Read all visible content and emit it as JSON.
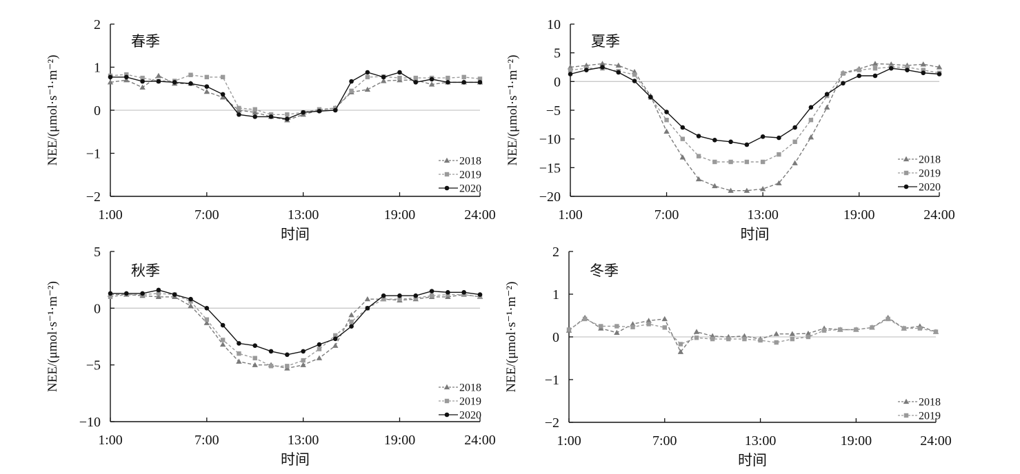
{
  "colors": {
    "axis": "#111111",
    "zero_line": "#c8c8c8",
    "s2018": "#7a7a7a",
    "s2019": "#9a9a9a",
    "s2020": "#111111"
  },
  "chart_data": [
    {
      "type": "line",
      "title": "春季",
      "ylabel": "NEE/(μmol·s⁻¹·m⁻²)",
      "xlabel": "时间",
      "ylim": [
        -2,
        2
      ],
      "yticks": [
        "2",
        "1",
        "0",
        "−1",
        "−2"
      ],
      "xticks": [
        "1:00",
        "7:00",
        "13:00",
        "19:00",
        "24:00"
      ],
      "x": [
        1,
        2,
        3,
        4,
        5,
        6,
        7,
        8,
        9,
        10,
        11,
        12,
        13,
        14,
        15,
        16,
        17,
        18,
        19,
        20,
        21,
        22,
        23,
        24
      ],
      "legend_position": "bottom-right",
      "series": [
        {
          "name": "2018",
          "marker": "triangle",
          "values": [
            0.65,
            0.7,
            0.53,
            0.8,
            0.62,
            0.62,
            0.43,
            0.3,
            0.0,
            -0.05,
            -0.15,
            -0.23,
            -0.1,
            0.0,
            0.05,
            0.42,
            0.48,
            0.68,
            0.7,
            0.7,
            0.6,
            0.65,
            0.65,
            0.65
          ]
        },
        {
          "name": "2019",
          "marker": "square",
          "values": [
            0.8,
            0.83,
            0.75,
            0.68,
            0.68,
            0.82,
            0.77,
            0.77,
            0.05,
            0.02,
            -0.1,
            -0.1,
            -0.05,
            0.02,
            0.05,
            0.45,
            0.77,
            0.78,
            0.75,
            0.75,
            0.75,
            0.75,
            0.77,
            0.73
          ]
        },
        {
          "name": "2020",
          "marker": "circle",
          "values": [
            0.77,
            0.77,
            0.67,
            0.67,
            0.65,
            0.62,
            0.55,
            0.37,
            -0.1,
            -0.15,
            -0.15,
            -0.2,
            -0.05,
            -0.02,
            0.0,
            0.67,
            0.88,
            0.77,
            0.88,
            0.65,
            0.72,
            0.65,
            0.65,
            0.65
          ]
        }
      ]
    },
    {
      "type": "line",
      "title": "夏季",
      "ylabel": "NEE/(μmol·s⁻¹·m⁻²)",
      "xlabel": "时间",
      "ylim": [
        -20,
        10
      ],
      "yticks": [
        "10",
        "5",
        "0",
        "−5",
        "−10",
        "−15",
        "−20"
      ],
      "xticks": [
        "1:00",
        "7:00",
        "13:00",
        "19:00",
        "24:00"
      ],
      "x": [
        1,
        2,
        3,
        4,
        5,
        6,
        7,
        8,
        9,
        10,
        11,
        12,
        13,
        14,
        15,
        16,
        17,
        18,
        19,
        20,
        21,
        22,
        23,
        24
      ],
      "legend_position": "bottom-right",
      "series": [
        {
          "name": "2018",
          "marker": "triangle",
          "values": [
            2.5,
            2.8,
            3.1,
            2.8,
            1.7,
            -2.5,
            -8.7,
            -13.2,
            -17.0,
            -18.2,
            -19.0,
            -19.0,
            -18.7,
            -17.7,
            -14.2,
            -9.7,
            -4.5,
            1.5,
            2.2,
            3.1,
            3.0,
            2.8,
            3.0,
            2.5
          ]
        },
        {
          "name": "2019",
          "marker": "square",
          "values": [
            2.0,
            2.3,
            2.3,
            1.8,
            1.2,
            -2.8,
            -6.7,
            -10.0,
            -13.0,
            -14.0,
            -14.0,
            -14.0,
            -14.0,
            -12.7,
            -10.5,
            -6.7,
            -2.5,
            1.4,
            2.0,
            2.3,
            2.5,
            2.5,
            2.0,
            1.5
          ]
        },
        {
          "name": "2020",
          "marker": "circle",
          "values": [
            1.3,
            2.0,
            2.5,
            1.6,
            0.1,
            -2.7,
            -5.3,
            -8.0,
            -9.5,
            -10.2,
            -10.5,
            -11.0,
            -9.6,
            -9.8,
            -8.0,
            -4.5,
            -2.2,
            -0.3,
            1.0,
            1.0,
            2.3,
            2.0,
            1.5,
            1.3
          ]
        }
      ]
    },
    {
      "type": "line",
      "title": "秋季",
      "ylabel": "NEE/(μmol·s⁻¹·m⁻²)",
      "xlabel": "时间",
      "ylim": [
        -10,
        5
      ],
      "yticks": [
        "5",
        "0",
        "−5",
        "−10"
      ],
      "xticks": [
        "1:00",
        "7:00",
        "13:00",
        "19:00",
        "24:00"
      ],
      "x": [
        1,
        2,
        3,
        4,
        5,
        6,
        7,
        8,
        9,
        10,
        11,
        12,
        13,
        14,
        15,
        16,
        17,
        18,
        19,
        20,
        21,
        22,
        23,
        24
      ],
      "legend_position": "bottom-right",
      "series": [
        {
          "name": "2018",
          "marker": "triangle",
          "values": [
            1.2,
            1.2,
            1.1,
            1.0,
            1.0,
            0.2,
            -1.3,
            -3.2,
            -4.7,
            -5.0,
            -5.0,
            -5.3,
            -5.0,
            -4.4,
            -3.3,
            -0.6,
            0.8,
            0.8,
            0.7,
            0.8,
            1.0,
            1.0,
            1.2,
            1.0
          ]
        },
        {
          "name": "2019",
          "marker": "square",
          "values": [
            1.0,
            1.2,
            1.2,
            1.3,
            1.2,
            0.6,
            -1.0,
            -2.8,
            -4.0,
            -4.4,
            -5.1,
            -5.1,
            -4.6,
            -3.6,
            -2.4,
            -1.2,
            0.0,
            0.8,
            0.8,
            0.9,
            1.1,
            1.2,
            1.2,
            1.0
          ]
        },
        {
          "name": "2020",
          "marker": "circle",
          "values": [
            1.3,
            1.3,
            1.3,
            1.6,
            1.2,
            0.8,
            0.0,
            -1.5,
            -3.1,
            -3.3,
            -3.8,
            -4.1,
            -3.8,
            -3.2,
            -2.7,
            -1.6,
            0.0,
            1.1,
            1.1,
            1.1,
            1.5,
            1.4,
            1.4,
            1.2
          ]
        }
      ]
    },
    {
      "type": "line",
      "title": "冬季",
      "ylabel": "NEE/(μmol·s⁻¹·m⁻²)",
      "xlabel": "时间",
      "ylim": [
        -2,
        2
      ],
      "yticks": [
        "2",
        "1",
        "0",
        "−1",
        "−2"
      ],
      "xticks": [
        "1:00",
        "7:00",
        "13:00",
        "19:00",
        "24:00"
      ],
      "x": [
        1,
        2,
        3,
        4,
        5,
        6,
        7,
        8,
        9,
        10,
        11,
        12,
        13,
        14,
        15,
        16,
        17,
        18,
        19,
        20,
        21,
        22,
        23,
        24
      ],
      "legend_position": "bottom-right",
      "series": [
        {
          "name": "2018",
          "marker": "triangle",
          "values": [
            0.15,
            0.45,
            0.2,
            0.1,
            0.3,
            0.38,
            0.42,
            -0.35,
            0.12,
            0.02,
            0.0,
            0.02,
            -0.05,
            0.07,
            0.07,
            0.08,
            0.2,
            0.17,
            0.17,
            0.22,
            0.45,
            0.2,
            0.25,
            0.12
          ]
        },
        {
          "name": "2019",
          "marker": "square",
          "values": [
            0.17,
            0.42,
            0.25,
            0.25,
            0.23,
            0.3,
            0.22,
            -0.17,
            -0.02,
            -0.05,
            -0.05,
            -0.05,
            -0.08,
            -0.13,
            -0.05,
            0.0,
            0.15,
            0.17,
            0.17,
            0.22,
            0.42,
            0.2,
            0.2,
            0.12
          ]
        }
      ]
    }
  ]
}
